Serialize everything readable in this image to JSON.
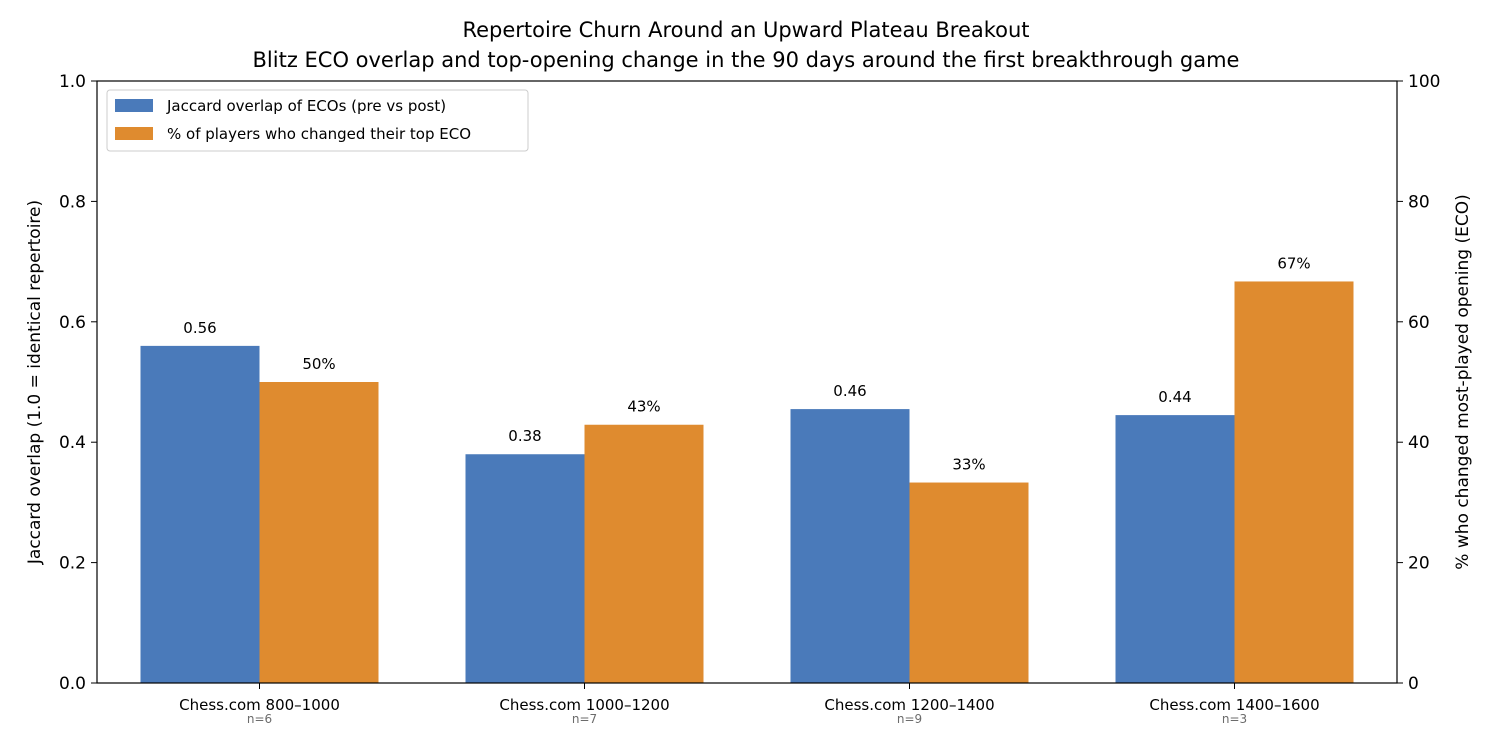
{
  "chart_data": {
    "type": "bar",
    "title": "Repertoire Churn Around an Upward Plateau Breakout",
    "subtitle": "Blitz ECO overlap and top-opening change in the 90 days around the first breakthrough game",
    "categories": [
      "Chess.com 800–1000",
      "Chess.com 1000–1200",
      "Chess.com 1200–1400",
      "Chess.com 1400–1600"
    ],
    "category_notes": [
      "n=6",
      "n=7",
      "n=9",
      "n=3"
    ],
    "ylabel": "Jaccard overlap (1.0 = identical repertoire)",
    "ylim": [
      0,
      1.0
    ],
    "yticks": [
      0.0,
      0.2,
      0.4,
      0.6,
      0.8,
      1.0
    ],
    "y2label": "% who changed most-played opening (ECO)",
    "y2lim": [
      0,
      100
    ],
    "y2ticks": [
      0,
      20,
      40,
      60,
      80,
      100
    ],
    "grid": false,
    "legend_position": "top-left",
    "series": [
      {
        "name": "Jaccard overlap of ECOs (pre vs post)",
        "axis": "left",
        "color": "#4a7aba",
        "values": [
          0.56,
          0.38,
          0.455,
          0.445
        ],
        "labels": [
          "0.56",
          "0.38",
          "0.46",
          "0.44"
        ]
      },
      {
        "name": "% of players who changed their top ECO",
        "axis": "right",
        "color": "#df8b2f",
        "values": [
          50,
          42.9,
          33.3,
          66.7
        ],
        "labels": [
          "50%",
          "43%",
          "33%",
          "67%"
        ]
      }
    ]
  }
}
